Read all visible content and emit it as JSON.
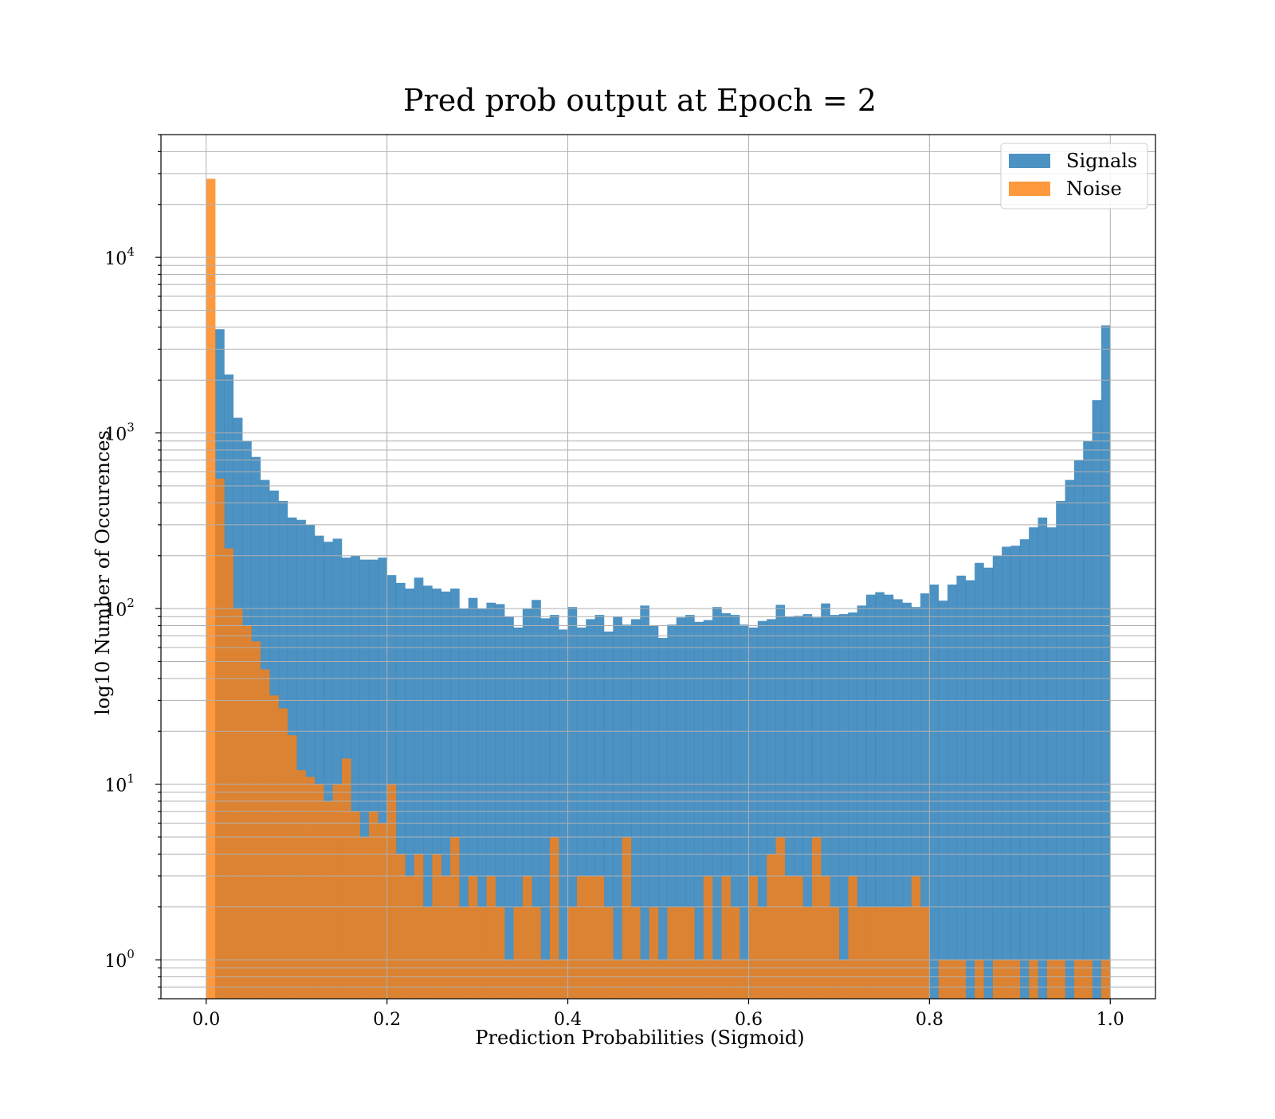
{
  "chart_data": {
    "type": "histogram",
    "title": "Pred prob output at Epoch = 2",
    "xlabel": "Prediction Probabilities (Sigmoid)",
    "ylabel": "log10 Number of Occurences",
    "y_scale": "log",
    "xlim": [
      -0.05,
      1.05
    ],
    "ylim": [
      0.6,
      50000
    ],
    "x_ticks": [
      "0.0",
      "0.2",
      "0.4",
      "0.6",
      "0.8",
      "1.0"
    ],
    "y_ticks": [
      {
        "base": "10",
        "exp": "0",
        "value": 1
      },
      {
        "base": "10",
        "exp": "1",
        "value": 10
      },
      {
        "base": "10",
        "exp": "2",
        "value": 100
      },
      {
        "base": "10",
        "exp": "3",
        "value": 1000
      },
      {
        "base": "10",
        "exp": "4",
        "value": 10000
      }
    ],
    "grid": true,
    "legend_position": "top-right",
    "bins": {
      "start": 0.0,
      "end": 1.0,
      "count": 100
    },
    "series": [
      {
        "name": "Signals",
        "color": "#1f77b4",
        "opacity": 0.8,
        "values": [
          0,
          3900,
          2150,
          1220,
          900,
          730,
          540,
          470,
          410,
          330,
          320,
          300,
          260,
          240,
          250,
          195,
          200,
          190,
          190,
          195,
          155,
          140,
          130,
          150,
          135,
          130,
          125,
          130,
          100,
          115,
          100,
          108,
          106,
          90,
          78,
          100,
          112,
          88,
          92,
          76,
          102,
          78,
          87,
          92,
          74,
          90,
          81,
          87,
          104,
          80,
          68,
          81,
          89,
          92,
          84,
          86,
          102,
          94,
          92,
          81,
          78,
          85,
          87,
          105,
          90,
          91,
          93,
          89,
          107,
          92,
          93,
          95,
          104,
          120,
          124,
          120,
          113,
          108,
          102,
          122,
          137,
          111,
          137,
          154,
          145,
          182,
          171,
          200,
          225,
          228,
          248,
          290,
          330,
          290,
          410,
          540,
          700,
          900,
          1540,
          4100
        ]
      },
      {
        "name": "Noise",
        "color": "#ff7f0e",
        "opacity": 0.8,
        "values": [
          28000,
          550,
          220,
          100,
          80,
          65,
          45,
          32,
          27,
          19,
          12,
          11,
          10,
          8,
          10,
          14,
          7,
          5,
          7,
          6,
          10,
          4,
          3,
          4,
          2,
          4,
          3,
          5,
          2,
          3,
          2,
          3,
          2,
          1,
          2,
          3,
          2,
          1,
          5,
          1,
          2,
          3,
          3,
          3,
          2,
          1,
          5,
          2,
          1,
          2,
          1,
          2,
          2,
          2,
          1,
          3,
          1,
          3,
          2,
          1,
          3,
          2,
          4,
          5,
          3,
          3,
          2,
          5,
          3,
          2,
          1,
          3,
          2,
          2,
          2,
          2,
          2,
          2,
          3,
          2,
          0,
          1,
          1,
          1,
          0,
          1,
          0,
          1,
          1,
          1,
          0,
          1,
          0,
          1,
          1,
          0,
          1,
          1,
          0,
          1
        ]
      }
    ]
  }
}
